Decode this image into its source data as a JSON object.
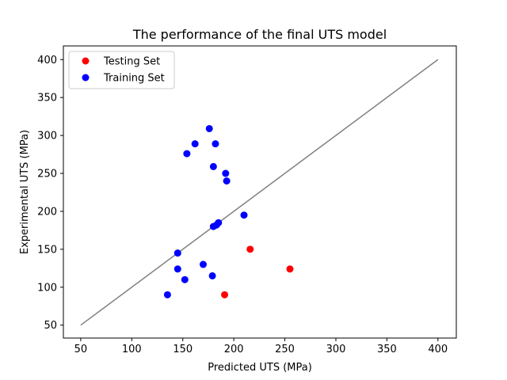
{
  "chart_data": {
    "type": "scatter",
    "title": "The performance of the final UTS model",
    "xlabel": "Predicted UTS (MPa)",
    "ylabel": "Experimental UTS (MPa)",
    "xlim": [
      33,
      418
    ],
    "ylim": [
      33,
      418
    ],
    "xticks": [
      50,
      100,
      150,
      200,
      250,
      300,
      350,
      400
    ],
    "yticks": [
      50,
      100,
      150,
      200,
      250,
      300,
      350,
      400
    ],
    "grid": false,
    "legend_position": "top-left",
    "series": [
      {
        "name": "Testing Set",
        "color": "#ff0000",
        "marker": "circle",
        "points": [
          {
            "x": 216,
            "y": 150
          },
          {
            "x": 255,
            "y": 124
          },
          {
            "x": 191,
            "y": 90
          }
        ]
      },
      {
        "name": "Training Set",
        "color": "#0000ff",
        "marker": "circle",
        "points": [
          {
            "x": 176,
            "y": 309
          },
          {
            "x": 162,
            "y": 289
          },
          {
            "x": 182,
            "y": 289
          },
          {
            "x": 154,
            "y": 276
          },
          {
            "x": 180,
            "y": 259
          },
          {
            "x": 192,
            "y": 250
          },
          {
            "x": 193,
            "y": 240
          },
          {
            "x": 210,
            "y": 195
          },
          {
            "x": 185,
            "y": 185
          },
          {
            "x": 183,
            "y": 182
          },
          {
            "x": 180,
            "y": 180
          },
          {
            "x": 145,
            "y": 145
          },
          {
            "x": 170,
            "y": 130
          },
          {
            "x": 145,
            "y": 124
          },
          {
            "x": 179,
            "y": 115
          },
          {
            "x": 152,
            "y": 110
          },
          {
            "x": 135,
            "y": 90
          }
        ]
      }
    ],
    "reference_line": {
      "from": [
        50,
        50
      ],
      "to": [
        400,
        400
      ],
      "color": "#808080"
    }
  }
}
